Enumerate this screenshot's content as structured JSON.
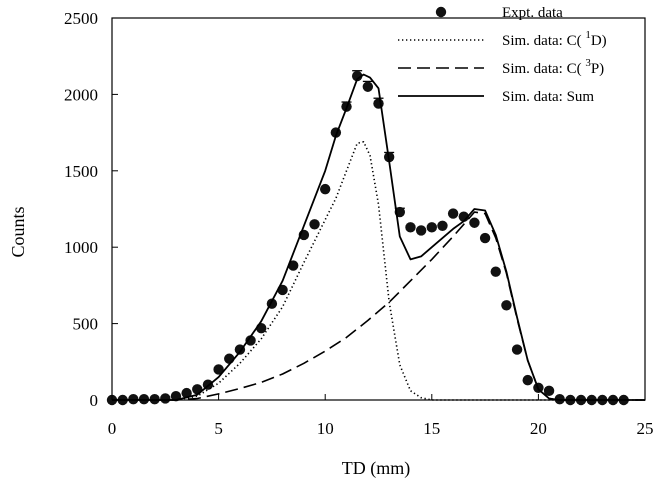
{
  "chart_data": {
    "type": "line",
    "xlabel": "TD (mm)",
    "ylabel": "Counts",
    "xlim": [
      0,
      25
    ],
    "ylim": [
      0,
      2500
    ],
    "xticks": [
      0,
      5,
      10,
      15,
      20,
      25
    ],
    "yticks": [
      0,
      500,
      1000,
      1500,
      2000,
      2500
    ],
    "grid": false,
    "legend_position": "top-right",
    "legend": [
      {
        "label": "Expt. data",
        "style": "marker"
      },
      {
        "label": "Sim. data: C( ",
        "sup": "1",
        "tail": "D)",
        "style": "dotted"
      },
      {
        "label": "Sim. data: C( ",
        "sup": "3",
        "tail": "P)",
        "style": "dashed"
      },
      {
        "label": "Sim. data: Sum",
        "style": "solid"
      }
    ],
    "series": [
      {
        "name": "Expt. data",
        "kind": "scatter",
        "x": [
          0,
          0.5,
          1,
          1.5,
          2,
          2.5,
          3,
          3.5,
          4,
          4.5,
          5,
          5.5,
          6,
          6.5,
          7,
          7.5,
          8,
          8.5,
          9,
          9.5,
          10,
          10.5,
          11,
          11.5,
          12,
          12.5,
          13,
          13.5,
          14,
          14.5,
          15,
          15.5,
          16,
          16.5,
          17,
          17.5,
          18,
          18.5,
          19,
          19.5,
          20,
          20.5,
          21,
          21.5,
          22,
          22.5,
          23,
          23.5,
          24
        ],
        "y": [
          0,
          0,
          5,
          5,
          5,
          10,
          25,
          45,
          70,
          100,
          200,
          270,
          330,
          390,
          470,
          630,
          720,
          880,
          1080,
          1150,
          1380,
          1750,
          1920,
          2120,
          2050,
          1940,
          1590,
          1230,
          1130,
          1110,
          1130,
          1140,
          1220,
          1200,
          1160,
          1060,
          840,
          620,
          330,
          130,
          80,
          60,
          5,
          0,
          0,
          0,
          0,
          0,
          0
        ],
        "error": [
          0,
          0,
          0,
          0,
          0,
          0,
          0,
          0,
          0,
          0,
          0,
          0,
          0,
          0,
          0,
          0,
          0,
          0,
          0,
          0,
          0,
          0,
          30,
          35,
          35,
          35,
          30,
          25,
          0,
          0,
          0,
          0,
          0,
          0,
          0,
          0,
          0,
          0,
          0,
          0,
          0,
          0,
          0,
          0,
          0,
          0,
          0,
          0,
          0
        ]
      },
      {
        "name": "Sim. data: C( 1D)",
        "kind": "dotted",
        "x": [
          0,
          3,
          4,
          5,
          6,
          7,
          8,
          9,
          10,
          10.5,
          11,
          11.5,
          11.8,
          12.1,
          12.5,
          13,
          13.5,
          14,
          14.5,
          15,
          16,
          18,
          20,
          25
        ],
        "y": [
          0,
          0,
          25,
          110,
          240,
          400,
          610,
          900,
          1180,
          1320,
          1500,
          1680,
          1690,
          1600,
          1280,
          640,
          230,
          60,
          15,
          0,
          0,
          0,
          0,
          0
        ]
      },
      {
        "name": "Sim. data: C( 3P)",
        "kind": "dashed",
        "x": [
          0,
          3,
          4,
          5,
          6,
          7,
          8,
          9,
          10,
          11,
          12,
          13,
          14,
          15,
          16,
          16.5,
          17,
          17.5,
          18,
          18.5,
          19,
          19.5,
          20,
          20.5,
          21,
          25
        ],
        "y": [
          0,
          0,
          10,
          40,
          75,
          115,
          170,
          240,
          320,
          410,
          520,
          640,
          780,
          920,
          1070,
          1150,
          1230,
          1220,
          1060,
          830,
          530,
          260,
          70,
          10,
          0,
          0
        ]
      },
      {
        "name": "Sim. data: Sum",
        "kind": "solid",
        "x": [
          0,
          3,
          4,
          5,
          6,
          7,
          8,
          9,
          10,
          10.5,
          11,
          11.5,
          11.8,
          12.1,
          12.5,
          13,
          13.5,
          14,
          14.5,
          15,
          16,
          16.5,
          17,
          17.5,
          18,
          18.5,
          19,
          19.5,
          20,
          20.5,
          21,
          25
        ],
        "y": [
          0,
          0,
          35,
          150,
          315,
          515,
          780,
          1140,
          1500,
          1730,
          1910,
          2100,
          2130,
          2110,
          2040,
          1560,
          1070,
          920,
          940,
          1000,
          1120,
          1170,
          1250,
          1240,
          1080,
          840,
          540,
          260,
          70,
          10,
          0,
          0
        ]
      }
    ]
  }
}
